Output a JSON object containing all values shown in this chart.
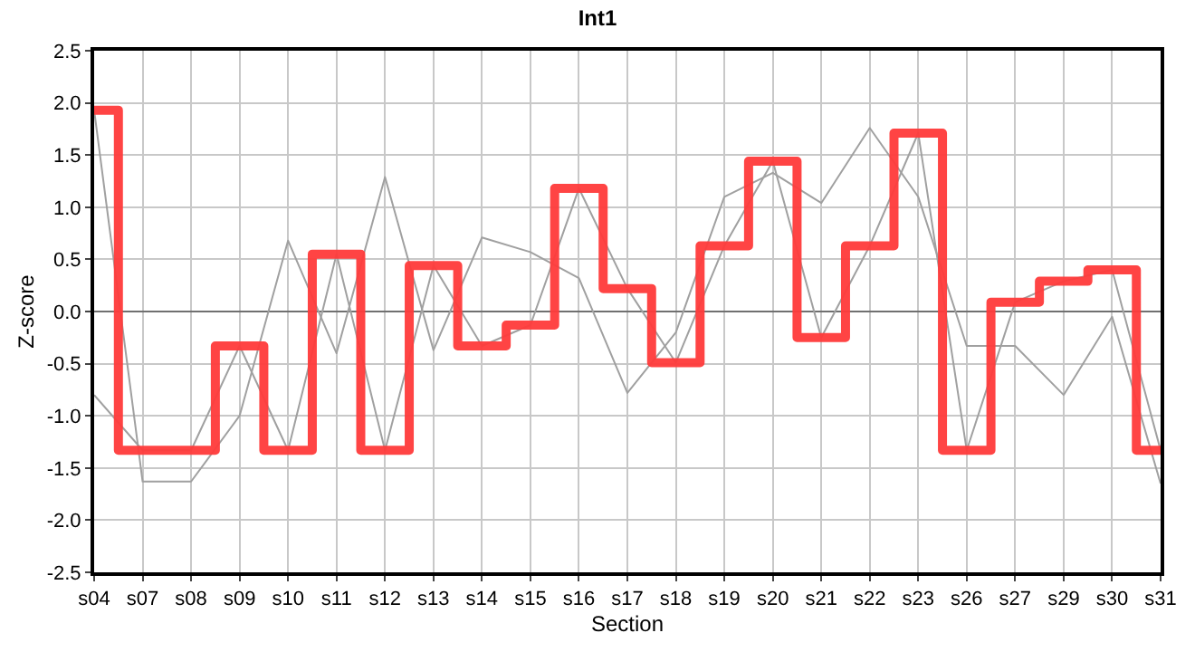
{
  "chart_data": {
    "type": "line",
    "title": "Int1",
    "xlabel": "Section",
    "ylabel": "Z-score",
    "categories": [
      "s04",
      "s07",
      "s08",
      "s09",
      "s10",
      "s11",
      "s12",
      "s13",
      "s14",
      "s15",
      "s16",
      "s17",
      "s18",
      "s19",
      "s20",
      "s21",
      "s22",
      "s23",
      "s26",
      "s27",
      "s29",
      "s30",
      "s31"
    ],
    "series": [
      {
        "color": "#a0a0a0",
        "values": [
          1.93,
          -1.63,
          -1.63,
          -1.0,
          0.68,
          -0.4,
          1.29,
          -0.37,
          0.71,
          0.57,
          0.32,
          -0.78,
          -0.2,
          1.1,
          1.33,
          1.04,
          1.76,
          1.1,
          -0.33,
          -0.33,
          -0.8,
          -0.05,
          -1.65
        ]
      },
      {
        "color": "#a0a0a0",
        "values": [
          -0.8,
          -1.33,
          -1.33,
          -0.33,
          -1.33,
          0.55,
          -1.33,
          0.44,
          -0.33,
          -0.13,
          1.18,
          0.22,
          -0.49,
          0.63,
          1.44,
          -0.25,
          0.63,
          1.71,
          -1.33,
          0.09,
          0.29,
          0.4,
          -1.33
        ]
      },
      {
        "type": "step",
        "color": "#ff3b3b",
        "values": [
          1.93,
          -1.33,
          -1.33,
          -0.33,
          -1.33,
          0.55,
          -1.33,
          0.44,
          -0.33,
          -0.13,
          1.18,
          0.22,
          -0.49,
          0.63,
          1.44,
          -0.25,
          0.63,
          1.71,
          -1.33,
          0.09,
          0.29,
          0.4,
          -1.33
        ]
      }
    ],
    "ylim": [
      -2.5,
      2.5
    ],
    "yticks": [
      {
        "value": -2.5,
        "label": "-2.5"
      },
      {
        "value": -2,
        "label": "-2.0"
      },
      {
        "value": -1.5,
        "label": "-1.5"
      },
      {
        "value": -1,
        "label": "-1.0"
      },
      {
        "value": -0.5,
        "label": "-0.5"
      },
      {
        "value": 0,
        "label": "0.0"
      },
      {
        "value": 0.5,
        "label": "0.5"
      },
      {
        "value": 1,
        "label": "1.0"
      },
      {
        "value": 1.5,
        "label": "1.5"
      },
      {
        "value": 2,
        "label": "2.0"
      },
      {
        "value": 2.5,
        "label": "2.5"
      }
    ],
    "ref_lines": [
      {
        "axis": "y",
        "value": 0,
        "color": "#707070"
      }
    ],
    "grid": true,
    "marker": "none",
    "line_style": "solid"
  }
}
